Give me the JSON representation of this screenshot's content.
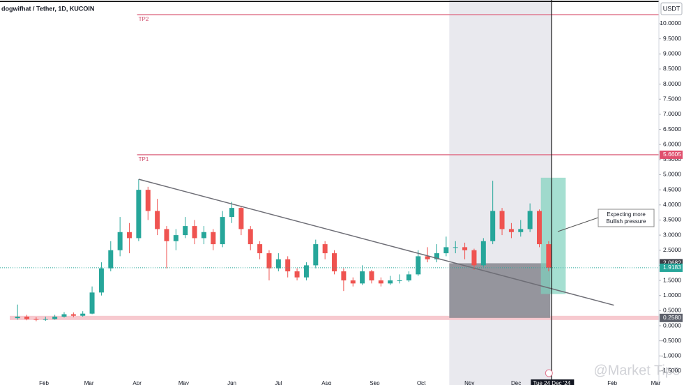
{
  "chart_data": {
    "type": "candlestick",
    "title": "dogwifhat / Tether, 1D, KUCOIN",
    "currency": "USDT",
    "watermark": "@Market Tips",
    "up_color": "#26a69a",
    "down_color": "#ef5350",
    "x": [
      14,
      20,
      26,
      32,
      38,
      44,
      50,
      56,
      62,
      68,
      74,
      80,
      86,
      92,
      98,
      104,
      110,
      116,
      122,
      128,
      134,
      140,
      146,
      152,
      158,
      164,
      170,
      176,
      182,
      188,
      194,
      200,
      206,
      212,
      218,
      224,
      230,
      236,
      242,
      248,
      254,
      260,
      266,
      272,
      278,
      284,
      290,
      296,
      302,
      308,
      314,
      320,
      326,
      332,
      338,
      344,
      350,
      356
    ],
    "open": [
      0.25,
      0.3,
      0.22,
      0.2,
      0.22,
      0.3,
      0.38,
      0.33,
      0.4,
      1.1,
      1.9,
      2.5,
      3.1,
      2.9,
      4.5,
      3.8,
      3.2,
      2.8,
      3.0,
      3.3,
      2.9,
      3.1,
      2.7,
      3.6,
      3.9,
      3.2,
      2.7,
      2.4,
      1.9,
      2.2,
      1.8,
      1.6,
      2.0,
      2.7,
      2.4,
      1.8,
      1.5,
      1.4,
      1.8,
      1.5,
      1.4,
      1.5,
      1.5,
      1.7,
      2.3,
      2.2,
      2.4,
      2.6,
      2.6,
      2.5,
      2.0,
      2.8,
      3.8,
      3.2,
      3.1,
      3.2,
      3.8,
      2.7
    ],
    "high": [
      0.7,
      0.36,
      0.28,
      0.3,
      0.36,
      0.45,
      0.44,
      0.48,
      1.3,
      2.1,
      2.8,
      3.6,
      3.4,
      4.85,
      4.6,
      4.2,
      3.3,
      3.2,
      3.6,
      3.5,
      3.3,
      3.2,
      3.8,
      4.1,
      3.95,
      3.3,
      2.8,
      2.5,
      2.4,
      2.3,
      1.9,
      2.1,
      2.85,
      2.8,
      2.5,
      1.9,
      1.6,
      2.0,
      1.85,
      1.6,
      1.65,
      1.7,
      1.8,
      2.5,
      2.6,
      2.7,
      2.95,
      2.8,
      2.75,
      2.55,
      2.9,
      4.8,
      3.9,
      3.4,
      3.5,
      4.05,
      3.85,
      2.8
    ],
    "low": [
      0.2,
      0.18,
      0.15,
      0.16,
      0.2,
      0.27,
      0.28,
      0.3,
      0.38,
      1.0,
      1.8,
      2.3,
      2.4,
      2.8,
      3.5,
      3.0,
      1.9,
      2.5,
      2.9,
      2.7,
      2.7,
      2.5,
      2.6,
      3.4,
      3.0,
      2.5,
      2.2,
      1.5,
      1.8,
      1.6,
      1.5,
      1.5,
      1.9,
      2.2,
      1.7,
      1.15,
      1.3,
      1.35,
      1.4,
      1.3,
      1.35,
      1.4,
      1.45,
      1.65,
      2.1,
      2.1,
      2.3,
      2.4,
      2.2,
      1.85,
      1.95,
      2.7,
      3.0,
      2.9,
      2.95,
      3.1,
      2.6,
      1.8
    ],
    "close": [
      0.3,
      0.22,
      0.2,
      0.22,
      0.3,
      0.38,
      0.33,
      0.4,
      1.1,
      1.9,
      2.5,
      3.1,
      2.9,
      4.5,
      3.8,
      3.2,
      2.8,
      3.0,
      3.3,
      2.9,
      3.1,
      2.7,
      3.6,
      3.9,
      3.2,
      2.7,
      2.4,
      1.9,
      2.2,
      1.8,
      1.6,
      2.0,
      2.7,
      2.4,
      1.8,
      1.5,
      1.4,
      1.8,
      1.5,
      1.4,
      1.5,
      1.5,
      1.7,
      2.3,
      2.2,
      2.4,
      2.6,
      2.6,
      2.5,
      2.0,
      2.8,
      3.8,
      3.2,
      3.1,
      3.2,
      3.8,
      2.7,
      1.92
    ],
    "xlim": [
      2.7,
      427
    ],
    "xticks": [
      {
        "value": 31,
        "label": "Feb"
      },
      {
        "value": 60,
        "label": "Mar"
      },
      {
        "value": 91,
        "label": "Apr"
      },
      {
        "value": 121,
        "label": "May"
      },
      {
        "value": 152,
        "label": "Jun"
      },
      {
        "value": 182,
        "label": "Jul"
      },
      {
        "value": 213,
        "label": "Aug"
      },
      {
        "value": 244,
        "label": "Sep"
      },
      {
        "value": 274,
        "label": "Oct"
      },
      {
        "value": 305,
        "label": "Nov"
      },
      {
        "value": 335,
        "label": "Dec"
      },
      {
        "value": 397,
        "label": "Feb"
      },
      {
        "value": 425,
        "label": "Mar"
      }
    ],
    "ylim": [
      -1.963,
      10.785
    ],
    "yticks": [
      {
        "value": -1.5,
        "label": "-1.5000"
      },
      {
        "value": -1,
        "label": "-1.0000"
      },
      {
        "value": -0.5,
        "label": "-0.5000"
      },
      {
        "value": 0,
        "label": "0.0000"
      },
      {
        "value": 0.5,
        "label": "0.5000"
      },
      {
        "value": 1,
        "label": "1.0000"
      },
      {
        "value": 1.5,
        "label": "1.5000"
      },
      {
        "value": 2,
        "label": "2.0000"
      },
      {
        "value": 2.5,
        "label": "2.5000"
      },
      {
        "value": 3,
        "label": "3.0000"
      },
      {
        "value": 3.5,
        "label": "3.5000"
      },
      {
        "value": 4,
        "label": "4.0000"
      },
      {
        "value": 4.5,
        "label": "4.5000"
      },
      {
        "value": 5,
        "label": "5.0000"
      },
      {
        "value": 5.5,
        "label": "5.5000"
      },
      {
        "value": 6,
        "label": "6.0000"
      },
      {
        "value": 6.5,
        "label": "6.5000"
      },
      {
        "value": 7,
        "label": "7.0000"
      },
      {
        "value": 7.5,
        "label": "7.5000"
      },
      {
        "value": 8,
        "label": "8.0000"
      },
      {
        "value": 8.5,
        "label": "8.5000"
      },
      {
        "value": 9,
        "label": "9.0000"
      },
      {
        "value": 9.5,
        "label": "9.5000"
      },
      {
        "value": 10,
        "label": "10.0000"
      }
    ],
    "levels": [
      {
        "label": "TP2",
        "value": 10.3,
        "x": 91
      },
      {
        "label": "TP1",
        "value": 5.6605,
        "x": 91
      }
    ],
    "support_band": {
      "value": 0.258
    },
    "price_labels": [
      {
        "value": 5.6605,
        "label": "5.6605",
        "color": "#e0506e"
      },
      {
        "value": 2.0682,
        "label": "2.0682",
        "color": "#3a3d46"
      },
      {
        "value": 1.9183,
        "label": "1.9183",
        "color": "#26a69a"
      },
      {
        "value": 0.258,
        "label": "0.2580",
        "color": "#5d606b"
      }
    ],
    "highlight_range": [
      292,
      358
    ],
    "dark_box": {
      "x": [
        292,
        357
      ],
      "y": [
        0.258,
        2.0682
      ]
    },
    "target_box": {
      "x": [
        351,
        367
      ],
      "y": [
        1.05,
        4.9
      ]
    },
    "trendline": {
      "x": [
        92,
        398
      ],
      "y": [
        4.85,
        0.68
      ]
    },
    "annotation": [
      "Expecting more",
      "Bullish pressure"
    ],
    "crosshair": {
      "x": 358,
      "label": "Tue 24 Dec '24"
    }
  }
}
